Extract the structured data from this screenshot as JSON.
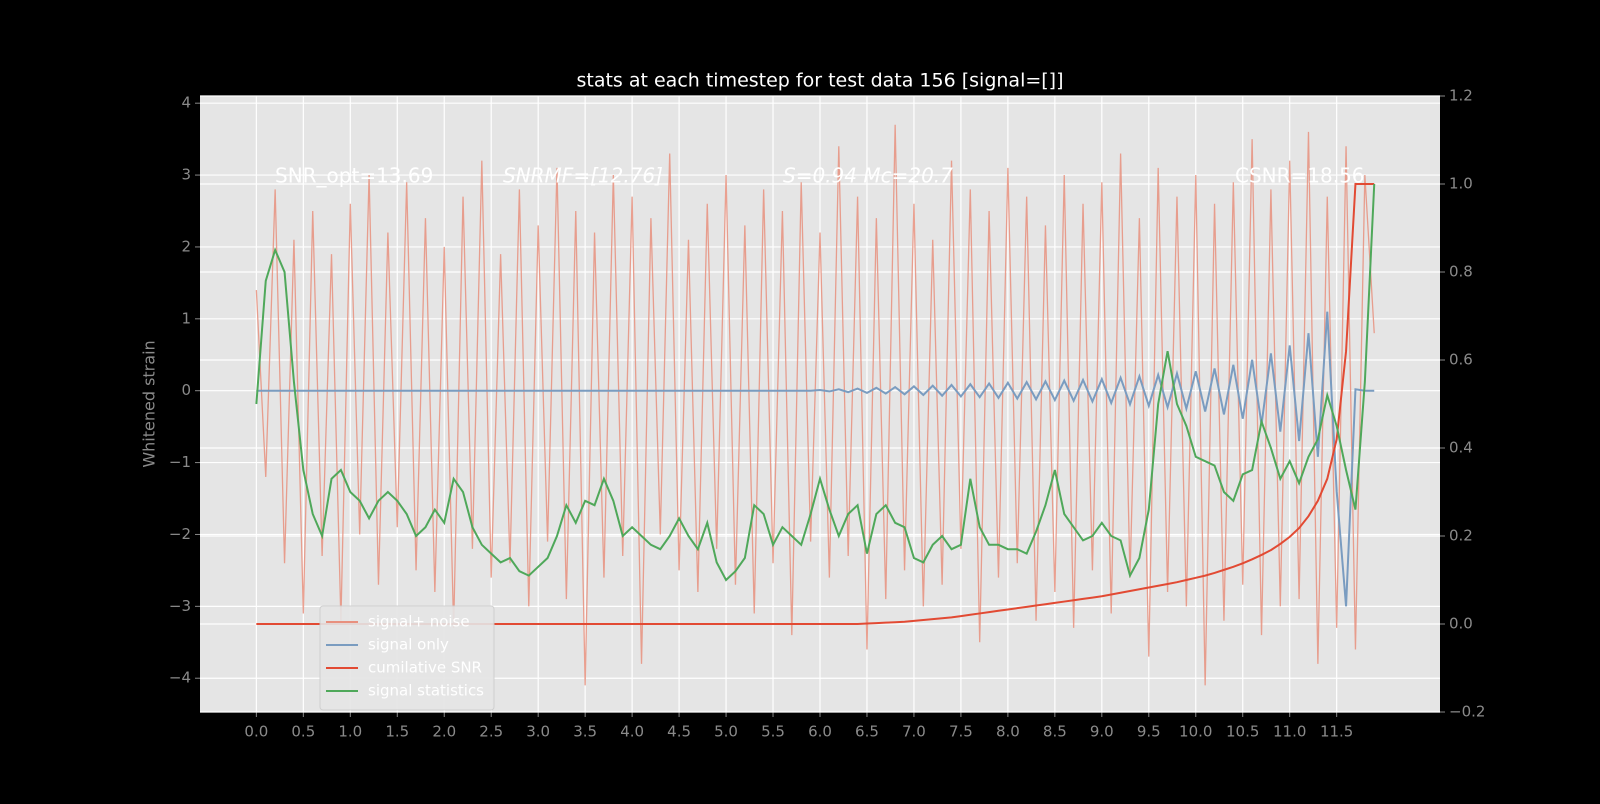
{
  "chart_data": {
    "type": "line",
    "title": "stats at each timestep for test data 156 [signal=[]]",
    "ylabel": "Whitened strain",
    "annotations": [
      "SNR_opt=13.69",
      "SNRMF=[12.76]",
      "S=0.94  Mc=20.7",
      "CSNR=18.56"
    ],
    "xlim": [
      -0.6,
      12.6
    ],
    "ylim": [
      -4.47,
      4.1
    ],
    "y2lim": [
      -0.2,
      1.2
    ],
    "xticks": [
      {
        "value": 0,
        "label": "0.0"
      },
      0.5,
      {
        "value": 1,
        "label": "1.0"
      },
      1.5,
      {
        "value": 2,
        "label": "2.0"
      },
      2.5,
      {
        "value": 3,
        "label": "3.0"
      },
      3.5,
      {
        "value": 4,
        "label": "4.0"
      },
      4.5,
      {
        "value": 5,
        "label": "5.0"
      },
      5.5,
      {
        "value": 6,
        "label": "6.0"
      },
      6.5,
      {
        "value": 7,
        "label": "7.0"
      },
      7.5,
      {
        "value": 8,
        "label": "8.0"
      },
      8.5,
      {
        "value": 9,
        "label": "9.0"
      },
      9.5,
      {
        "value": 10,
        "label": "10.0"
      },
      10.5,
      {
        "value": 11,
        "label": "11.0"
      },
      11.5
    ],
    "yticks": [
      {
        "value": -4,
        "label": "−4"
      },
      {
        "value": -3,
        "label": "−3"
      },
      {
        "value": -2,
        "label": "−2"
      },
      {
        "value": -1,
        "label": "−1"
      },
      0,
      1,
      2,
      3,
      4
    ],
    "y2ticks": [
      {
        "value": -0.2,
        "label": "−0.2"
      },
      {
        "value": 0,
        "label": "0.0"
      },
      0.2,
      0.4,
      0.6,
      0.8,
      {
        "value": 1,
        "label": "1.0"
      },
      1.2
    ],
    "grid": true,
    "legend": "lower left",
    "x": [
      0,
      0.1,
      0.2,
      0.3,
      0.4,
      0.5,
      0.6,
      0.7,
      0.8,
      0.9,
      1,
      1.1,
      1.2,
      1.3,
      1.4,
      1.5,
      1.6,
      1.7,
      1.8,
      1.9,
      2,
      2.1,
      2.2,
      2.3,
      2.4,
      2.5,
      2.6,
      2.7,
      2.8,
      2.9,
      3,
      3.1,
      3.2,
      3.3,
      3.4,
      3.5,
      3.6,
      3.7,
      3.8,
      3.9,
      4,
      4.1,
      4.2,
      4.3,
      4.4,
      4.5,
      4.6,
      4.7,
      4.8,
      4.9,
      5,
      5.1,
      5.2,
      5.3,
      5.4,
      5.5,
      5.6,
      5.7,
      5.8,
      5.9,
      6,
      6.1,
      6.2,
      6.3,
      6.4,
      6.5,
      6.6,
      6.7,
      6.8,
      6.9,
      7,
      7.1,
      7.2,
      7.3,
      7.4,
      7.5,
      7.6,
      7.7,
      7.8,
      7.9,
      8,
      8.1,
      8.2,
      8.3,
      8.4,
      8.5,
      8.6,
      8.7,
      8.8,
      8.9,
      9,
      9.1,
      9.2,
      9.3,
      9.4,
      9.5,
      9.6,
      9.7,
      9.8,
      9.9,
      10,
      10.1,
      10.2,
      10.3,
      10.4,
      10.5,
      10.6,
      10.7,
      10.8,
      10.9,
      11,
      11.1,
      11.2,
      11.3,
      11.4,
      11.5,
      11.6,
      11.7,
      11.8,
      11.9
    ],
    "series": [
      {
        "name": "signal+ noise",
        "color": "#e8907e",
        "axis": "y",
        "values": [
          1.4,
          -1.2,
          2.8,
          -2.4,
          2.1,
          -3.1,
          2.5,
          -2.3,
          1.9,
          -3.2,
          2.6,
          -2.0,
          3.0,
          -2.7,
          2.2,
          -1.9,
          2.9,
          -2.5,
          2.4,
          -2.8,
          2.0,
          -3.3,
          2.7,
          -2.2,
          3.2,
          -2.6,
          1.9,
          -2.4,
          2.8,
          -3.0,
          2.3,
          -2.1,
          3.1,
          -2.9,
          2.5,
          -4.1,
          2.2,
          -2.6,
          3.0,
          -2.3,
          2.7,
          -3.8,
          2.4,
          -2.0,
          3.3,
          -2.5,
          2.1,
          -2.8,
          2.6,
          -2.2,
          3.0,
          -2.7,
          2.3,
          -3.1,
          2.8,
          -2.4,
          2.5,
          -3.4,
          2.9,
          -2.1,
          2.2,
          -2.6,
          3.4,
          -2.3,
          2.7,
          -3.6,
          2.4,
          -2.9,
          3.7,
          -2.5,
          2.6,
          -3.0,
          2.1,
          -2.7,
          3.2,
          -2.2,
          2.8,
          -3.5,
          2.5,
          -2.6,
          3.1,
          -2.4,
          2.7,
          -3.2,
          2.3,
          -2.8,
          3.0,
          -3.3,
          2.6,
          -2.5,
          2.9,
          -3.1,
          3.3,
          -2.6,
          2.4,
          -3.7,
          3.1,
          -2.8,
          2.7,
          -3.0,
          3.0,
          -4.1,
          2.6,
          -3.2,
          2.9,
          -2.7,
          3.5,
          -3.4,
          2.8,
          -3.0,
          3.2,
          -2.9,
          3.6,
          -3.8,
          2.7,
          -3.3,
          3.4,
          -3.6,
          3.0,
          0.8
        ]
      },
      {
        "name": "signal only",
        "color": "#7a9cc0",
        "axis": "y",
        "values": [
          0,
          0,
          0,
          0,
          0,
          0,
          0,
          0,
          0,
          0,
          0,
          0,
          0,
          0,
          0,
          0,
          0,
          0,
          0,
          0,
          0,
          0,
          0,
          0,
          0,
          0,
          0,
          0,
          0,
          0,
          0,
          0,
          0,
          0,
          0,
          0,
          0,
          0,
          0,
          0,
          0,
          0,
          0,
          0,
          0,
          0,
          0,
          0,
          0,
          0,
          0,
          0,
          0,
          0,
          0,
          0,
          0,
          0,
          0,
          0,
          0.01,
          -0.01,
          0.02,
          -0.02,
          0.03,
          -0.03,
          0.04,
          -0.04,
          0.05,
          -0.05,
          0.06,
          -0.06,
          0.07,
          -0.07,
          0.08,
          -0.08,
          0.09,
          -0.09,
          0.1,
          -0.1,
          0.11,
          -0.11,
          0.12,
          -0.12,
          0.13,
          -0.13,
          0.14,
          -0.14,
          0.15,
          -0.15,
          0.16,
          -0.17,
          0.18,
          -0.19,
          0.2,
          -0.21,
          0.22,
          -0.23,
          0.24,
          -0.25,
          0.27,
          -0.29,
          0.31,
          -0.33,
          0.36,
          -0.39,
          0.43,
          -0.47,
          0.52,
          -0.57,
          0.63,
          -0.7,
          0.8,
          -0.92,
          1.1,
          -1.4,
          -3.0,
          0.02,
          0,
          0
        ]
      },
      {
        "name": "cumilative SNR",
        "color": "#e24a33",
        "axis": "y2",
        "values": [
          0,
          0,
          0,
          0,
          0,
          0,
          0,
          0,
          0,
          0,
          0,
          0,
          0,
          0,
          0,
          0,
          0,
          0,
          0,
          0,
          0,
          0,
          0,
          0,
          0,
          0,
          0,
          0,
          0,
          0,
          0,
          0,
          0,
          0,
          0,
          0,
          0,
          0,
          0,
          0,
          0,
          0,
          0,
          0,
          0,
          0,
          0,
          0,
          0,
          0,
          0,
          0,
          0,
          0,
          0,
          0,
          0,
          0,
          0,
          0,
          0,
          0,
          0,
          0,
          0,
          0.001,
          0.002,
          0.003,
          0.004,
          0.005,
          0.007,
          0.009,
          0.011,
          0.013,
          0.015,
          0.018,
          0.021,
          0.024,
          0.027,
          0.03,
          0.033,
          0.036,
          0.039,
          0.042,
          0.045,
          0.048,
          0.051,
          0.054,
          0.057,
          0.06,
          0.063,
          0.067,
          0.071,
          0.075,
          0.079,
          0.083,
          0.087,
          0.091,
          0.095,
          0.1,
          0.105,
          0.11,
          0.116,
          0.123,
          0.13,
          0.138,
          0.147,
          0.157,
          0.168,
          0.182,
          0.198,
          0.218,
          0.245,
          0.28,
          0.33,
          0.42,
          0.62,
          1.0,
          1.0,
          1.0
        ]
      },
      {
        "name": "signal statistics",
        "color": "#4fa85a",
        "axis": "y2",
        "values": [
          0.5,
          0.78,
          0.85,
          0.8,
          0.55,
          0.35,
          0.25,
          0.2,
          0.33,
          0.35,
          0.3,
          0.28,
          0.24,
          0.28,
          0.3,
          0.28,
          0.25,
          0.2,
          0.22,
          0.26,
          0.23,
          0.33,
          0.3,
          0.22,
          0.18,
          0.16,
          0.14,
          0.15,
          0.12,
          0.11,
          0.13,
          0.15,
          0.2,
          0.27,
          0.23,
          0.28,
          0.27,
          0.33,
          0.28,
          0.2,
          0.22,
          0.2,
          0.18,
          0.17,
          0.2,
          0.24,
          0.2,
          0.17,
          0.23,
          0.14,
          0.1,
          0.12,
          0.15,
          0.27,
          0.25,
          0.18,
          0.22,
          0.2,
          0.18,
          0.25,
          0.33,
          0.26,
          0.2,
          0.25,
          0.27,
          0.16,
          0.25,
          0.27,
          0.23,
          0.22,
          0.15,
          0.14,
          0.18,
          0.2,
          0.17,
          0.18,
          0.33,
          0.22,
          0.18,
          0.18,
          0.17,
          0.17,
          0.16,
          0.21,
          0.27,
          0.35,
          0.25,
          0.22,
          0.19,
          0.2,
          0.23,
          0.2,
          0.19,
          0.11,
          0.15,
          0.26,
          0.5,
          0.62,
          0.5,
          0.45,
          0.38,
          0.37,
          0.36,
          0.3,
          0.28,
          0.34,
          0.35,
          0.46,
          0.4,
          0.33,
          0.37,
          0.32,
          0.38,
          0.42,
          0.52,
          0.45,
          0.35,
          0.26,
          0.55,
          1.0
        ]
      }
    ]
  }
}
